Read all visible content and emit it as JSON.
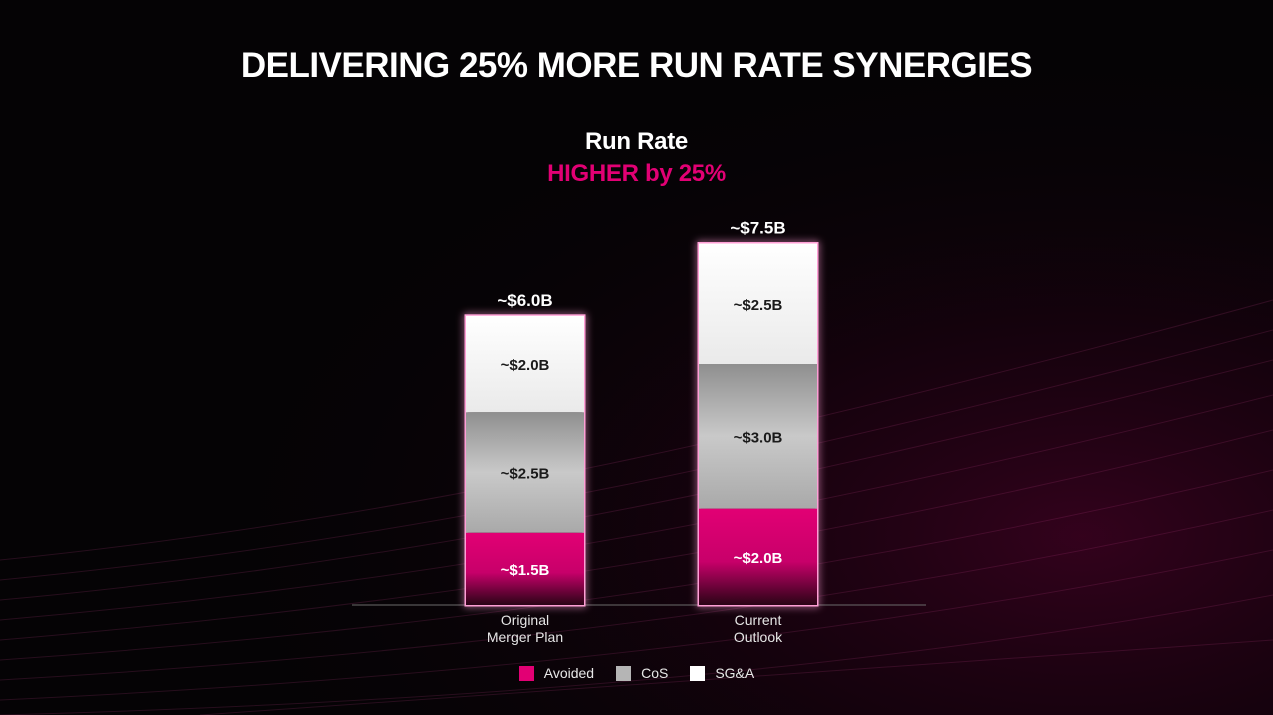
{
  "title": "DELIVERING 25% MORE RUN RATE SYNERGIES",
  "subtitle": "Run Rate",
  "subtitle_highlight": "HIGHER by 25%",
  "colors": {
    "accent": "#e20074",
    "avoided": "#e20074",
    "cos": "#b5b5b5",
    "sga": "#ffffff",
    "background": "#050305"
  },
  "chart_data": {
    "type": "bar",
    "stacked": true,
    "categories": [
      "Original\nMerger Plan",
      "Current\nOutlook"
    ],
    "series": [
      {
        "name": "Avoided",
        "values": [
          1.5,
          2.0
        ],
        "labels": [
          "~$1.5B",
          "~$2.0B"
        ]
      },
      {
        "name": "CoS",
        "values": [
          2.5,
          3.0
        ],
        "labels": [
          "~$2.5B",
          "~$3.0B"
        ]
      },
      {
        "name": "SG&A",
        "values": [
          2.0,
          2.5
        ],
        "labels": [
          "~$2.0B",
          "~$2.5B"
        ]
      }
    ],
    "totals": [
      6.0,
      7.5
    ],
    "total_labels": [
      "~$6.0B",
      "~$7.5B"
    ],
    "ylim": [
      0,
      7.5
    ],
    "grid": false,
    "legend_position": "bottom"
  },
  "legend": [
    {
      "label": "Avoided",
      "icon": "magenta-square"
    },
    {
      "label": "CoS",
      "icon": "gray-square"
    },
    {
      "label": "SG&A",
      "icon": "white-square"
    }
  ]
}
